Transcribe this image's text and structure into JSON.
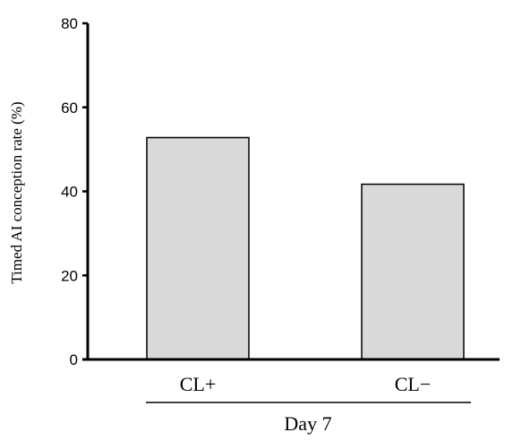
{
  "chart_data": {
    "type": "bar",
    "categories": [
      "CL+",
      "CL−"
    ],
    "values": [
      52.8,
      41.7
    ],
    "ylabel": "Timed AI conception rate (%)",
    "ylim": [
      0,
      80
    ],
    "yticks": [
      0,
      20,
      40,
      60,
      80
    ],
    "group_label": "Day 7",
    "grid": false,
    "legend": "none",
    "colors": {
      "bar_fill": "#d9d9d9",
      "bar_stroke": "#000000",
      "axis": "#000000"
    }
  }
}
